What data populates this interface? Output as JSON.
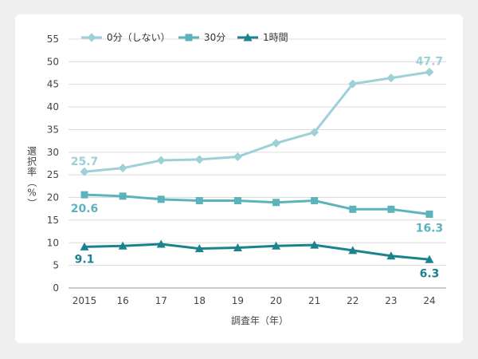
{
  "colors": {
    "background": "#efefef",
    "card": "#ffffff",
    "grid": "#dcdcdc",
    "axis_text": "#444444"
  },
  "chart_data": {
    "type": "line",
    "xlabel": "調査年（年）",
    "ylabel": "選択率（%）",
    "ylim": [
      0,
      55
    ],
    "yticks": [
      0,
      5,
      10,
      15,
      20,
      25,
      30,
      35,
      40,
      45,
      50,
      55
    ],
    "grid": true,
    "legend_position": "top",
    "categories": [
      "2015",
      "16",
      "17",
      "18",
      "19",
      "20",
      "21",
      "22",
      "23",
      "24"
    ],
    "series": [
      {
        "name": "0分（しない）",
        "marker": "diamond",
        "color": "#9dd0d7",
        "values": [
          25.7,
          26.5,
          28.2,
          28.4,
          29.0,
          32.0,
          34.4,
          45.1,
          46.4,
          47.7
        ],
        "start_label": "25.7",
        "end_label": "47.7"
      },
      {
        "name": "30分",
        "marker": "square",
        "color": "#5cb3bb",
        "values": [
          20.6,
          20.3,
          19.6,
          19.3,
          19.3,
          18.9,
          19.3,
          17.4,
          17.4,
          16.3
        ],
        "start_label": "20.6",
        "end_label": "16.3"
      },
      {
        "name": "1時間",
        "marker": "triangle",
        "color": "#1b838d",
        "values": [
          9.1,
          9.3,
          9.7,
          8.7,
          8.9,
          9.3,
          9.5,
          8.3,
          7.1,
          6.3
        ],
        "start_label": "9.1",
        "end_label": "6.3"
      }
    ]
  }
}
